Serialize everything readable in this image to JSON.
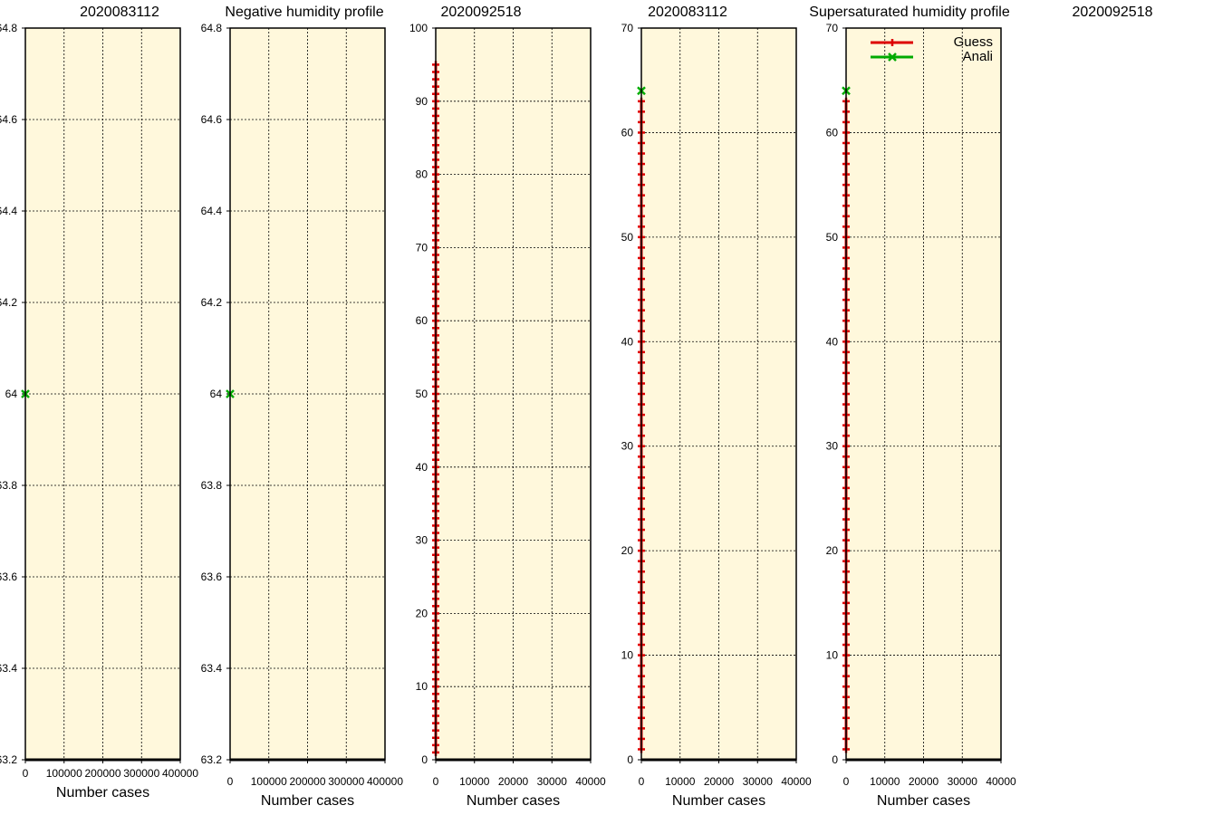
{
  "chart_data": [
    {
      "type": "line",
      "title": "2020083112",
      "xlabel": "Number cases",
      "ylabel": "",
      "xlim": [
        0,
        400000
      ],
      "ylim": [
        63.2,
        64.8
      ],
      "xticks": [
        0,
        100000,
        200000,
        300000,
        400000
      ],
      "xtick_labels": [
        "0",
        "100000",
        "200000",
        "300000",
        "400000"
      ],
      "yticks": [
        63.2,
        63.4,
        63.6,
        63.8,
        64,
        64.2,
        64.4,
        64.6,
        64.8
      ],
      "ytick_labels": [
        "63.2",
        "63.4",
        "63.6",
        "63.8",
        "64",
        "64.2",
        "64.4",
        "64.6",
        "64.8"
      ],
      "grid": true,
      "background": "#fff8dc",
      "series": [
        {
          "name": "Anali",
          "color": "#00aa00",
          "marker": "x",
          "x": [
            0
          ],
          "y": [
            64
          ]
        }
      ]
    },
    {
      "type": "line",
      "title": "Negative humidity profile",
      "xlabel": "Number cases",
      "ylabel": "",
      "xlim": [
        0,
        400000
      ],
      "ylim": [
        63.2,
        64.8
      ],
      "xticks": [
        0,
        100000,
        200000,
        300000,
        400000
      ],
      "xtick_labels": [
        "0",
        "100000",
        "200000",
        "300000",
        "400000"
      ],
      "yticks": [
        63.2,
        63.4,
        63.6,
        63.8,
        64,
        64.2,
        64.4,
        64.6,
        64.8
      ],
      "ytick_labels": [
        "63.2",
        "63.4",
        "63.6",
        "63.8",
        "64",
        "64.2",
        "64.4",
        "64.6",
        "64.8"
      ],
      "grid": true,
      "background": "#fff8dc",
      "series": [
        {
          "name": "Anali",
          "color": "#00aa00",
          "marker": "x",
          "x": [
            0
          ],
          "y": [
            64
          ]
        }
      ]
    },
    {
      "type": "line",
      "title": "2020092518",
      "xlabel": "Number cases",
      "ylabel": "",
      "xlim": [
        0,
        40000
      ],
      "ylim": [
        0,
        100
      ],
      "xticks": [
        0,
        10000,
        20000,
        30000,
        40000
      ],
      "xtick_labels": [
        "0",
        "10000",
        "20000",
        "30000",
        "40000"
      ],
      "yticks": [
        0,
        10,
        20,
        30,
        40,
        50,
        60,
        70,
        80,
        90,
        100
      ],
      "ytick_labels": [
        "0",
        "10",
        "20",
        "30",
        "40",
        "50",
        "60",
        "70",
        "80",
        "90",
        "100"
      ],
      "grid": true,
      "background": "#fff8dc",
      "series": [
        {
          "name": "Guess",
          "color": "#dd0000",
          "marker": "+",
          "x_constant": 0,
          "y_from": 1,
          "y_to": 95,
          "y_step": 1
        }
      ]
    },
    {
      "type": "line",
      "title": "2020083112",
      "xlabel": "Number cases",
      "ylabel": "",
      "xlim": [
        0,
        40000
      ],
      "ylim": [
        0,
        70
      ],
      "xticks": [
        0,
        10000,
        20000,
        30000,
        40000
      ],
      "xtick_labels": [
        "0",
        "10000",
        "20000",
        "30000",
        "40000"
      ],
      "yticks": [
        0,
        10,
        20,
        30,
        40,
        50,
        60,
        70
      ],
      "ytick_labels": [
        "0",
        "10",
        "20",
        "30",
        "40",
        "50",
        "60",
        "70"
      ],
      "grid": true,
      "background": "#fff8dc",
      "series": [
        {
          "name": "Guess",
          "color": "#dd0000",
          "marker": "+",
          "x_constant": 0,
          "y_from": 1,
          "y_to": 63,
          "y_step": 1
        },
        {
          "name": "Anali",
          "color": "#00aa00",
          "marker": "x",
          "x": [
            0
          ],
          "y": [
            64
          ]
        }
      ]
    },
    {
      "type": "line",
      "title": "Supersaturated humidity profile",
      "xlabel": "Number cases",
      "ylabel": "",
      "xlim": [
        0,
        40000
      ],
      "ylim": [
        0,
        70
      ],
      "xticks": [
        0,
        10000,
        20000,
        30000,
        40000
      ],
      "xtick_labels": [
        "0",
        "10000",
        "20000",
        "30000",
        "40000"
      ],
      "yticks": [
        0,
        10,
        20,
        30,
        40,
        50,
        60,
        70
      ],
      "ytick_labels": [
        "0",
        "10",
        "20",
        "30",
        "40",
        "50",
        "60",
        "70"
      ],
      "grid": true,
      "background": "#fff8dc",
      "legend": {
        "placement": "top-right",
        "entries": [
          {
            "name": "Guess",
            "color": "#dd0000",
            "marker": "+"
          },
          {
            "name": "Anali",
            "color": "#00aa00",
            "marker": "x"
          }
        ]
      },
      "series": [
        {
          "name": "Guess",
          "color": "#dd0000",
          "marker": "+",
          "x_constant": 0,
          "y_from": 1,
          "y_to": 63,
          "y_step": 1
        },
        {
          "name": "Anali",
          "color": "#00aa00",
          "marker": "x",
          "x": [
            0
          ],
          "y": [
            64
          ]
        }
      ]
    },
    {
      "type": "line",
      "title": "2020092518",
      "xlabel": "",
      "ylabel": "",
      "empty": true,
      "series": []
    }
  ]
}
